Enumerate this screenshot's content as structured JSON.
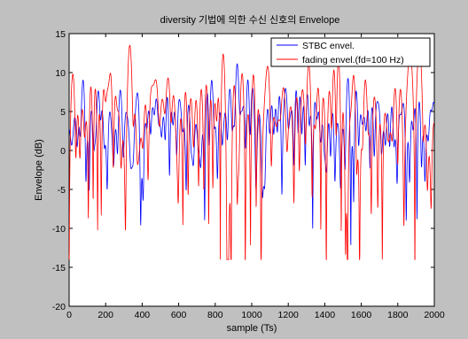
{
  "window": {
    "background": "#c0c0c0"
  },
  "chart_data": {
    "type": "line",
    "title": "diversity 기법에 의한 수신 신호의 Envelope",
    "xlabel": "sample (Ts)",
    "ylabel": "Envelope (dB)",
    "xlim": [
      0,
      2000
    ],
    "ylim": [
      -20,
      15
    ],
    "x_ticks": [
      "0",
      "200",
      "400",
      "600",
      "800",
      "1000",
      "1200",
      "1400",
      "1600",
      "1800",
      "2000"
    ],
    "y_ticks": [
      "15",
      "10",
      "5",
      "0",
      "-5",
      "-10",
      "-15",
      "-20"
    ],
    "grid": false,
    "legend_position": "top-right",
    "series": [
      {
        "name": "STBC envel.",
        "color": "#0000ff"
      },
      {
        "name": "fading envel.(fd=100 Hz)",
        "color": "#ff0000"
      }
    ],
    "signal_shape": {
      "num_samples": 2000,
      "stbc_typical_range_db": [
        -2,
        9
      ],
      "stbc_min_db": -15.5,
      "fading_typical_range_db": [
        -5,
        5
      ],
      "fading_min_db": -14
    }
  }
}
